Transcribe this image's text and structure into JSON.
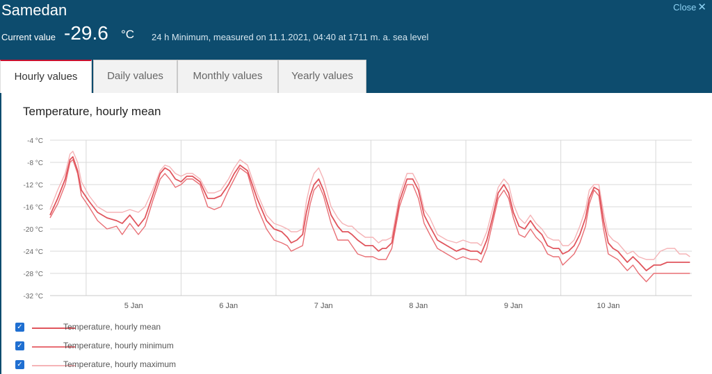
{
  "header": {
    "station": "Samedan",
    "close_label": "Close",
    "current_label": "Current value",
    "current_value": "-29.6",
    "current_unit": "°C",
    "note": "24 h Minimum, measured on 11.1.2021, 04:40 at 1711 m. a. sea level"
  },
  "tabs": [
    {
      "label": "Hourly values",
      "active": true
    },
    {
      "label": "Daily values",
      "active": false
    },
    {
      "label": "Monthly values",
      "active": false
    },
    {
      "label": "Yearly values",
      "active": false
    }
  ],
  "chart_data": {
    "type": "line",
    "title": "Temperature, hourly mean",
    "xlabel": "",
    "ylabel": "",
    "ylim": [
      -32,
      -4
    ],
    "yticks": [
      "-4 °C",
      "-8 °C",
      "-12 °C",
      "-16 °C",
      "-20 °C",
      "-24 °C",
      "-28 °C",
      "-32 °C"
    ],
    "xlim": [
      4.12,
      10.88
    ],
    "xticks": [
      {
        "x": 5,
        "label": "5 Jan"
      },
      {
        "x": 6,
        "label": "6 Jan"
      },
      {
        "x": 7,
        "label": "7 Jan"
      },
      {
        "x": 8,
        "label": "8 Jan"
      },
      {
        "x": 9,
        "label": "9 Jan"
      },
      {
        "x": 10,
        "label": "10 Jan"
      }
    ],
    "grid": true,
    "legend_position": "bottom-left",
    "series": [
      {
        "name": "Temperature, hourly mean",
        "color": "#e0545c",
        "x": [
          4.12,
          4.2,
          4.28,
          4.33,
          4.36,
          4.41,
          4.45,
          4.53,
          4.62,
          4.72,
          4.82,
          4.88,
          4.96,
          5.05,
          5.12,
          5.2,
          5.28,
          5.33,
          5.38,
          5.44,
          5.5,
          5.56,
          5.62,
          5.7,
          5.78,
          5.85,
          5.92,
          6.0,
          6.06,
          6.12,
          6.2,
          6.3,
          6.4,
          6.48,
          6.56,
          6.62,
          6.66,
          6.72,
          6.78,
          6.82,
          6.86,
          6.9,
          6.95,
          7.0,
          7.08,
          7.15,
          7.2,
          7.26,
          7.3,
          7.36,
          7.44,
          7.52,
          7.58,
          7.62,
          7.66,
          7.72,
          7.8,
          7.88,
          7.94,
          8.0,
          8.06,
          8.12,
          8.2,
          8.3,
          8.4,
          8.47,
          8.55,
          8.62,
          8.66,
          8.72,
          8.78,
          8.84,
          8.9,
          8.95,
          9.0,
          9.06,
          9.12,
          9.18,
          9.24,
          9.3,
          9.36,
          9.42,
          9.48,
          9.52,
          9.58,
          9.64,
          9.7,
          9.76,
          9.8,
          9.85,
          9.9,
          9.95,
          10.0,
          10.05,
          10.1,
          10.15,
          10.2,
          10.26,
          10.32,
          10.4,
          10.48,
          10.55,
          10.62,
          10.7,
          10.75,
          10.82,
          10.86
        ],
        "y": [
          -17.5,
          -14.5,
          -11,
          -7.5,
          -7,
          -9.5,
          -13,
          -15,
          -17,
          -18,
          -18.5,
          -19,
          -17.5,
          -19.5,
          -18,
          -14,
          -10,
          -9,
          -9.5,
          -11,
          -11.5,
          -10.5,
          -10.5,
          -11.5,
          -14.5,
          -14.5,
          -14,
          -12,
          -10,
          -8.5,
          -9.5,
          -14.5,
          -18.5,
          -20,
          -20.5,
          -21.5,
          -22.5,
          -22,
          -21,
          -17,
          -14,
          -12,
          -11,
          -13,
          -17.5,
          -19.5,
          -20.5,
          -20.5,
          -21,
          -22,
          -23,
          -23,
          -24,
          -23.5,
          -23.5,
          -22.5,
          -15,
          -11,
          -11,
          -13,
          -17.5,
          -19.5,
          -22,
          -23,
          -24,
          -23.5,
          -24,
          -24,
          -24.5,
          -22,
          -18,
          -13.5,
          -12,
          -13.5,
          -17,
          -19.5,
          -20,
          -18.5,
          -20,
          -21,
          -23,
          -23.5,
          -23.5,
          -24.5,
          -24,
          -23,
          -21,
          -18,
          -14.5,
          -12.5,
          -13,
          -18.5,
          -22.5,
          -23.5,
          -24,
          -25,
          -26,
          -25,
          -26,
          -27.5,
          -26.5,
          -26.5,
          -26,
          -26,
          -26,
          -26,
          -26
        ]
      },
      {
        "name": "Temperature, hourly minimum",
        "color": "#e86e74",
        "x": [
          4.12,
          4.2,
          4.28,
          4.33,
          4.36,
          4.41,
          4.45,
          4.53,
          4.62,
          4.72,
          4.82,
          4.88,
          4.96,
          5.05,
          5.12,
          5.2,
          5.28,
          5.33,
          5.38,
          5.44,
          5.5,
          5.56,
          5.62,
          5.7,
          5.78,
          5.85,
          5.92,
          6.0,
          6.06,
          6.12,
          6.2,
          6.3,
          6.4,
          6.48,
          6.56,
          6.62,
          6.66,
          6.72,
          6.78,
          6.82,
          6.86,
          6.9,
          6.95,
          7.0,
          7.08,
          7.15,
          7.2,
          7.26,
          7.3,
          7.36,
          7.44,
          7.52,
          7.58,
          7.62,
          7.66,
          7.72,
          7.8,
          7.88,
          7.94,
          8.0,
          8.06,
          8.12,
          8.2,
          8.3,
          8.4,
          8.47,
          8.55,
          8.62,
          8.66,
          8.72,
          8.78,
          8.84,
          8.9,
          8.95,
          9.0,
          9.06,
          9.12,
          9.18,
          9.24,
          9.3,
          9.36,
          9.42,
          9.48,
          9.52,
          9.58,
          9.64,
          9.7,
          9.76,
          9.8,
          9.85,
          9.9,
          9.95,
          10.0,
          10.05,
          10.1,
          10.15,
          10.2,
          10.26,
          10.32,
          10.4,
          10.48,
          10.55,
          10.62,
          10.7,
          10.75,
          10.82,
          10.86
        ],
        "y": [
          -18,
          -15.5,
          -12,
          -8,
          -7.5,
          -10,
          -14,
          -16,
          -18.5,
          -20,
          -19.5,
          -21,
          -19,
          -21,
          -19.5,
          -15,
          -11,
          -10,
          -11,
          -12.5,
          -12,
          -11,
          -11,
          -12,
          -16,
          -16.5,
          -16,
          -13,
          -11,
          -9,
          -10,
          -16,
          -20,
          -22,
          -22.5,
          -23,
          -24,
          -23.5,
          -23,
          -19,
          -15.5,
          -13,
          -12,
          -14,
          -19,
          -22,
          -22,
          -22,
          -23,
          -24.5,
          -25,
          -25,
          -25.5,
          -25.5,
          -25.5,
          -23.5,
          -16,
          -12,
          -12,
          -14.5,
          -19,
          -21,
          -23.5,
          -24.5,
          -25.5,
          -25,
          -25.5,
          -25.5,
          -26,
          -23.5,
          -19,
          -14.5,
          -13,
          -14.5,
          -18,
          -21,
          -21.5,
          -20,
          -21.5,
          -22.5,
          -24.5,
          -25,
          -25,
          -26.5,
          -25.5,
          -24.5,
          -22.5,
          -19.5,
          -15.5,
          -13,
          -14,
          -20,
          -24.5,
          -25,
          -25.5,
          -26.5,
          -27.5,
          -26.5,
          -28,
          -29.5,
          -28,
          -28,
          -28,
          -28,
          -28,
          -28,
          -28
        ]
      },
      {
        "name": "Temperature, hourly maximum",
        "color": "#f5b3b6",
        "x": [
          4.12,
          4.2,
          4.28,
          4.33,
          4.36,
          4.41,
          4.45,
          4.53,
          4.62,
          4.72,
          4.82,
          4.88,
          4.96,
          5.05,
          5.12,
          5.2,
          5.28,
          5.33,
          5.38,
          5.44,
          5.5,
          5.56,
          5.62,
          5.7,
          5.78,
          5.85,
          5.92,
          6.0,
          6.06,
          6.12,
          6.2,
          6.3,
          6.4,
          6.48,
          6.56,
          6.62,
          6.66,
          6.72,
          6.78,
          6.82,
          6.86,
          6.9,
          6.95,
          7.0,
          7.08,
          7.15,
          7.2,
          7.26,
          7.3,
          7.36,
          7.44,
          7.52,
          7.58,
          7.62,
          7.66,
          7.72,
          7.8,
          7.88,
          7.94,
          8.0,
          8.06,
          8.12,
          8.2,
          8.3,
          8.4,
          8.47,
          8.55,
          8.62,
          8.66,
          8.72,
          8.78,
          8.84,
          8.9,
          8.95,
          9.0,
          9.06,
          9.12,
          9.18,
          9.24,
          9.3,
          9.36,
          9.42,
          9.48,
          9.52,
          9.58,
          9.64,
          9.7,
          9.76,
          9.8,
          9.85,
          9.9,
          9.95,
          10.0,
          10.05,
          10.1,
          10.15,
          10.2,
          10.26,
          10.32,
          10.4,
          10.48,
          10.55,
          10.62,
          10.7,
          10.75,
          10.82,
          10.86
        ],
        "y": [
          -16.5,
          -13,
          -10,
          -6.5,
          -6,
          -8,
          -11.5,
          -14,
          -16,
          -17,
          -17,
          -17,
          -16.5,
          -17,
          -16,
          -13,
          -9.5,
          -8.5,
          -8.8,
          -10,
          -10.5,
          -10,
          -10,
          -11,
          -13.5,
          -13.5,
          -13,
          -11,
          -9,
          -7.5,
          -8.5,
          -13.5,
          -17.5,
          -19,
          -19.5,
          -20,
          -20.5,
          -20.5,
          -20,
          -15,
          -12,
          -10,
          -9,
          -11,
          -16,
          -18,
          -19,
          -19.5,
          -19.5,
          -20.5,
          -21.5,
          -21.5,
          -22.5,
          -22,
          -22,
          -21.5,
          -14,
          -10,
          -10,
          -12,
          -16.5,
          -18,
          -21,
          -22,
          -22.5,
          -22,
          -22.5,
          -22.5,
          -23,
          -20.5,
          -16.5,
          -12.5,
          -11,
          -12,
          -15.5,
          -18,
          -19,
          -17.5,
          -19,
          -20,
          -21.5,
          -22,
          -22,
          -23,
          -23,
          -22,
          -19.5,
          -16.5,
          -13,
          -12,
          -12,
          -17,
          -21,
          -22,
          -22.5,
          -23.5,
          -24.5,
          -24,
          -25,
          -25.5,
          -25.5,
          -24,
          -23.5,
          -23.5,
          -24.5,
          -24.5,
          -25
        ]
      }
    ]
  }
}
